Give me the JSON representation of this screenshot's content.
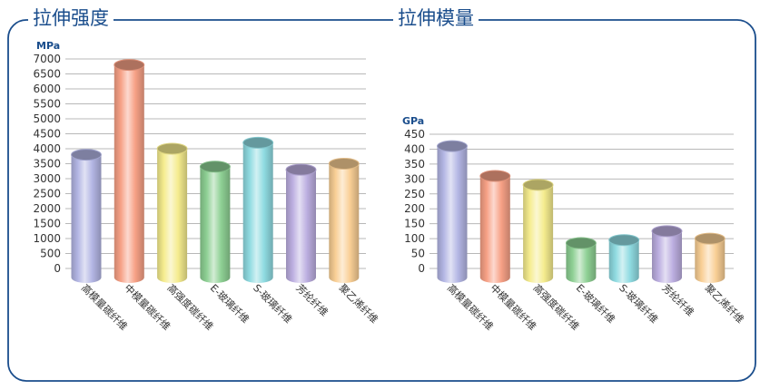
{
  "chart_data": [
    {
      "type": "bar",
      "title": "拉伸强度",
      "ylabel": "MPa",
      "ylim": [
        0,
        7000
      ],
      "yticks": [
        0,
        500,
        1000,
        1500,
        2000,
        2500,
        3000,
        3500,
        4000,
        4500,
        5000,
        5500,
        6000,
        6500,
        7000
      ],
      "categories": [
        "高模量碳纤维",
        "中模量碳纤维",
        "高强度碳纤维",
        "E-玻璃纤维",
        "S-玻璃纤维",
        "芳纶纤维",
        "聚乙烯纤维"
      ],
      "values": [
        3800,
        6800,
        4000,
        3400,
        4200,
        3300,
        3500
      ],
      "colors": [
        "#b3b6e4",
        "#f7a186",
        "#f5ec8e",
        "#8ed094",
        "#8fdbe1",
        "#bcaee0",
        "#f9cf95"
      ],
      "grid": true
    },
    {
      "type": "bar",
      "title": "拉伸模量",
      "ylabel": "GPa",
      "ylim": [
        0,
        450
      ],
      "yticks": [
        0,
        50,
        100,
        150,
        200,
        250,
        300,
        350,
        400,
        450
      ],
      "categories": [
        "高模量碳纤维",
        "中模量碳纤维",
        "高强度碳纤维",
        "E-玻璃纤维",
        "S-玻璃纤维",
        "芳纶纤维",
        "聚乙烯纤维"
      ],
      "values": [
        410,
        310,
        280,
        85,
        95,
        125,
        100
      ],
      "colors": [
        "#b3b6e4",
        "#f7a186",
        "#f5ec8e",
        "#8ed094",
        "#8fdbe1",
        "#bcaee0",
        "#f9cf95"
      ],
      "grid": true
    }
  ]
}
